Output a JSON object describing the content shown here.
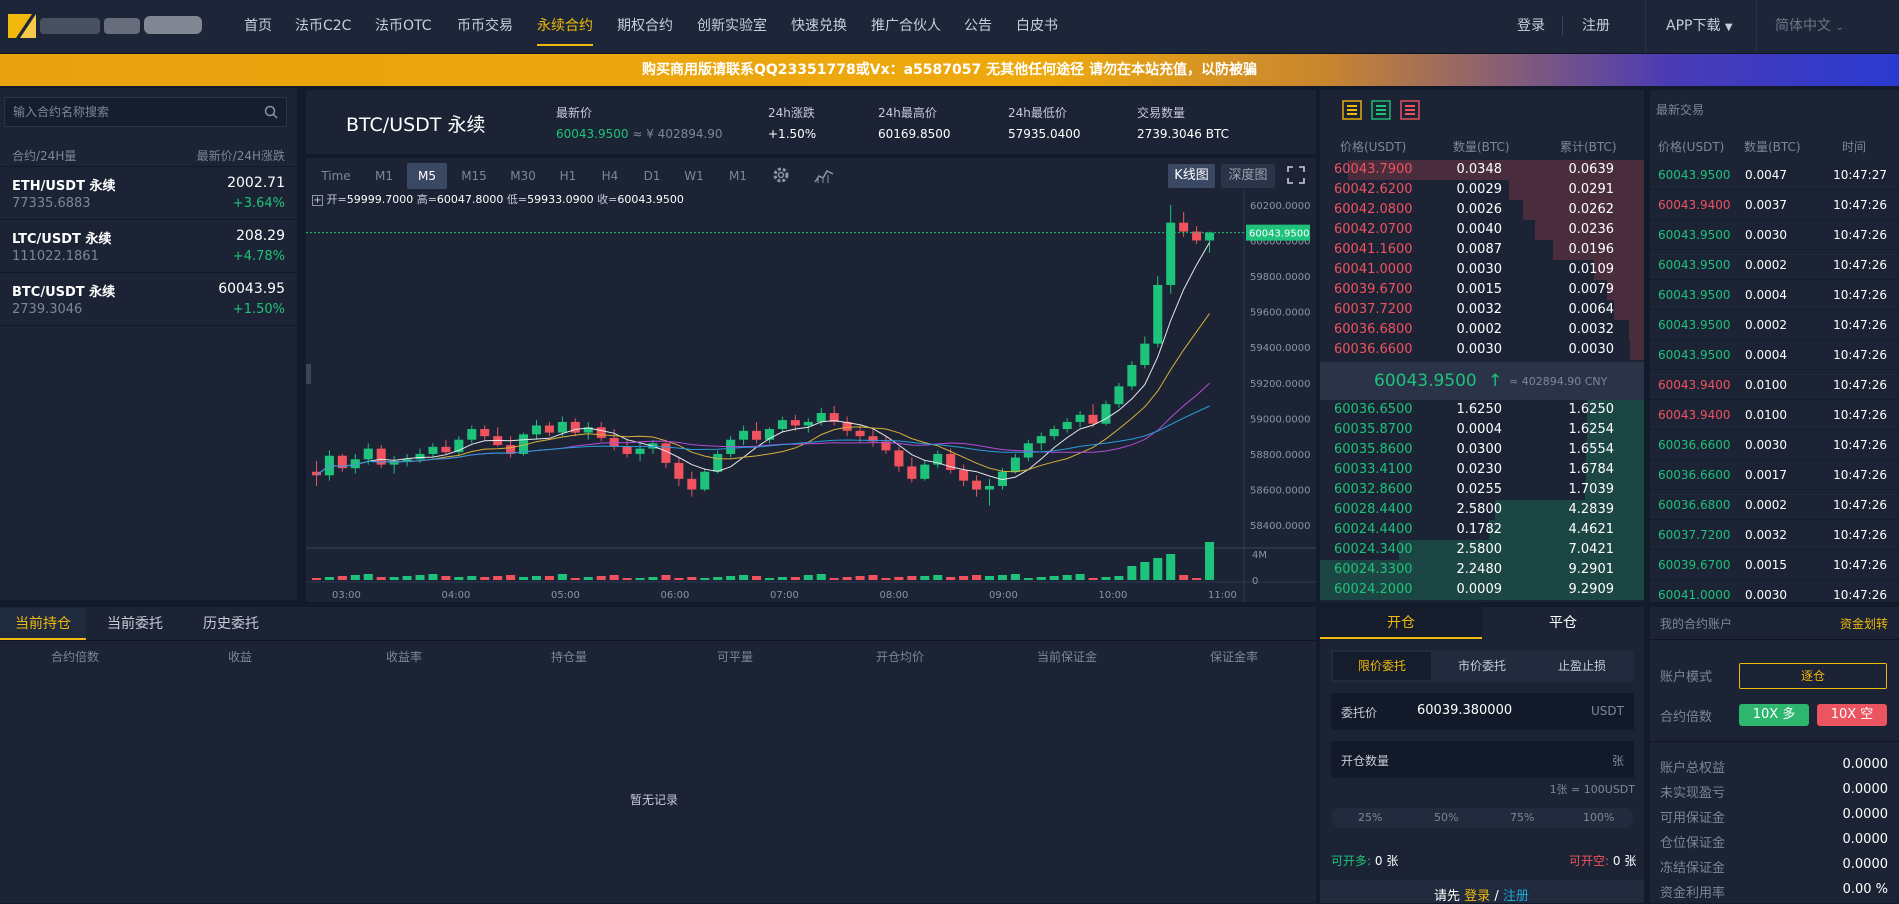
{
  "nav": {
    "items": [
      "首页",
      "法币C2C",
      "法币OTC",
      "币币交易",
      "永续合约",
      "期权合约",
      "创新实验室",
      "快速兑换",
      "推广合伙人",
      "公告",
      "白皮书"
    ],
    "login": "登录",
    "register": "注册",
    "app_download": "APP下载",
    "language": "简体中文"
  },
  "banner": {
    "text": "购买商用版请联系QQ23351778或Vx：a5587057 无其他任何途径 请勿在本站充值，以防被骗"
  },
  "market": {
    "search_placeholder": "输入合约名称搜索",
    "col_left": "合约/24H量",
    "col_right": "最新价/24H涨跌",
    "rows": [
      {
        "name": "ETH/USDT 永续",
        "vol": "77335.6883",
        "price": "2002.71",
        "change": "+3.64%"
      },
      {
        "name": "LTC/USDT 永续",
        "vol": "111022.1861",
        "price": "208.29",
        "change": "+4.78%"
      },
      {
        "name": "BTC/USDT 永续",
        "vol": "2739.3046",
        "price": "60043.95",
        "change": "+1.50%"
      }
    ]
  },
  "ticker": {
    "symbol": "BTC/USDT 永续",
    "last_label": "最新价",
    "last_value": "60043.9500",
    "last_cny": "≈ ¥ 402894.90",
    "change_label": "24h涨跌",
    "change_value": "+1.50%",
    "high_label": "24h最高价",
    "high_value": "60169.8500",
    "low_label": "24h最低价",
    "low_value": "57935.0400",
    "vol_label": "交易数量",
    "vol_value": "2739.3046 BTC"
  },
  "chart_toolbar": {
    "timeframes": [
      "Time",
      "M1",
      "M5",
      "M15",
      "M30",
      "H1",
      "H4",
      "D1",
      "W1",
      "M1"
    ],
    "active": "M5",
    "kline": "K线图",
    "depth": "深度图",
    "settings_icon": "gear-icon",
    "indicator_icon": "indicator-icon",
    "fullscreen_icon": "fullscreen-icon"
  },
  "ohlc": {
    "open_label": "开=",
    "open": "59999.7000",
    "high_label": "高=",
    "high": "60047.8000",
    "low_label": "低=",
    "low": "59933.0900",
    "close_label": "收=",
    "close": "60043.9500"
  },
  "chart_data": {
    "type": "candlestick",
    "price_ticks": [
      "60200.0000",
      "60000.0000",
      "59800.0000",
      "59600.0000",
      "59400.0000",
      "59200.0000",
      "59000.0000",
      "58800.0000",
      "58600.0000",
      "58400.0000"
    ],
    "volume_ticks": [
      "4M",
      "0"
    ],
    "time_ticks": [
      "03:00",
      "04:00",
      "05:00",
      "06:00",
      "07:00",
      "08:00",
      "09:00",
      "10:00",
      "11:00"
    ],
    "last_price_label": "60043.9500",
    "ylim": [
      58350,
      60250
    ],
    "candles": [
      [
        58700,
        58760,
        58620,
        58680
      ],
      [
        58680,
        58820,
        58650,
        58790
      ],
      [
        58790,
        58800,
        58700,
        58720
      ],
      [
        58720,
        58800,
        58690,
        58770
      ],
      [
        58770,
        58860,
        58740,
        58830
      ],
      [
        58830,
        58850,
        58720,
        58740
      ],
      [
        58740,
        58790,
        58690,
        58760
      ],
      [
        58760,
        58800,
        58730,
        58770
      ],
      [
        58770,
        58830,
        58750,
        58800
      ],
      [
        58800,
        58860,
        58780,
        58840
      ],
      [
        58840,
        58880,
        58800,
        58810
      ],
      [
        58810,
        58900,
        58790,
        58880
      ],
      [
        58880,
        58960,
        58860,
        58940
      ],
      [
        58940,
        58960,
        58880,
        58900
      ],
      [
        58900,
        58950,
        58840,
        58850
      ],
      [
        58850,
        58900,
        58780,
        58800
      ],
      [
        58800,
        58920,
        58790,
        58910
      ],
      [
        58910,
        58990,
        58880,
        58960
      ],
      [
        58960,
        58980,
        58900,
        58920
      ],
      [
        58920,
        59010,
        58900,
        58980
      ],
      [
        58980,
        59000,
        58900,
        58920
      ],
      [
        58920,
        58980,
        58880,
        58950
      ],
      [
        58950,
        58980,
        58870,
        58890
      ],
      [
        58890,
        58940,
        58820,
        58840
      ],
      [
        58840,
        58880,
        58780,
        58800
      ],
      [
        58800,
        58860,
        58760,
        58830
      ],
      [
        58830,
        58880,
        58800,
        58860
      ],
      [
        58860,
        58880,
        58720,
        58750
      ],
      [
        58750,
        58780,
        58620,
        58660
      ],
      [
        58660,
        58700,
        58560,
        58600
      ],
      [
        58600,
        58720,
        58590,
        58700
      ],
      [
        58700,
        58820,
        58690,
        58800
      ],
      [
        58800,
        58900,
        58780,
        58880
      ],
      [
        58880,
        58960,
        58850,
        58930
      ],
      [
        58930,
        58980,
        58860,
        58880
      ],
      [
        58880,
        58950,
        58860,
        58940
      ],
      [
        58940,
        59010,
        58920,
        58990
      ],
      [
        58990,
        59020,
        58930,
        58960
      ],
      [
        58960,
        59000,
        58920,
        58980
      ],
      [
        58980,
        59060,
        58960,
        59030
      ],
      [
        59030,
        59070,
        58960,
        58980
      ],
      [
        58980,
        59010,
        58900,
        58930
      ],
      [
        58930,
        58960,
        58860,
        58900
      ],
      [
        58900,
        58940,
        58840,
        58870
      ],
      [
        58870,
        58900,
        58800,
        58820
      ],
      [
        58820,
        58840,
        58700,
        58730
      ],
      [
        58730,
        58780,
        58640,
        58660
      ],
      [
        58660,
        58760,
        58650,
        58740
      ],
      [
        58740,
        58820,
        58720,
        58800
      ],
      [
        58800,
        58830,
        58690,
        58710
      ],
      [
        58710,
        58740,
        58620,
        58650
      ],
      [
        58650,
        58680,
        58560,
        58600
      ],
      [
        58600,
        58660,
        58510,
        58620
      ],
      [
        58620,
        58720,
        58600,
        58700
      ],
      [
        58700,
        58800,
        58690,
        58780
      ],
      [
        58780,
        58880,
        58760,
        58860
      ],
      [
        58860,
        58920,
        58820,
        58900
      ],
      [
        58900,
        58960,
        58880,
        58940
      ],
      [
        58940,
        59000,
        58920,
        58980
      ],
      [
        58980,
        59040,
        58950,
        59020
      ],
      [
        59020,
        59080,
        58950,
        58970
      ],
      [
        58970,
        59100,
        58960,
        59080
      ],
      [
        59080,
        59200,
        59060,
        59180
      ],
      [
        59180,
        59320,
        59160,
        59300
      ],
      [
        59300,
        59460,
        59280,
        59420
      ],
      [
        59420,
        59800,
        59400,
        59750
      ],
      [
        59750,
        60200,
        59700,
        60100
      ],
      [
        60100,
        60160,
        60020,
        60050
      ],
      [
        60050,
        60080,
        59980,
        60000
      ],
      [
        60000,
        60050,
        59930,
        60044
      ]
    ]
  },
  "orderbook": {
    "head_price": "价格(USDT)",
    "head_amount": "数量(BTC)",
    "head_total": "累计(BTC)",
    "asks": [
      [
        "60043.7900",
        "0.0348",
        "0.0639"
      ],
      [
        "60042.6200",
        "0.0029",
        "0.0291"
      ],
      [
        "60042.0800",
        "0.0026",
        "0.0262"
      ],
      [
        "60042.0700",
        "0.0040",
        "0.0236"
      ],
      [
        "60041.1600",
        "0.0087",
        "0.0196"
      ],
      [
        "60041.0000",
        "0.0030",
        "0.0109"
      ],
      [
        "60039.6700",
        "0.0015",
        "0.0079"
      ],
      [
        "60037.7200",
        "0.0032",
        "0.0064"
      ],
      [
        "60036.6800",
        "0.0002",
        "0.0032"
      ],
      [
        "60036.6600",
        "0.0030",
        "0.0030"
      ]
    ],
    "mid_price": "60043.9500",
    "mid_arrow": "↑",
    "mid_cny": "≈ 402894.90 CNY",
    "bids": [
      [
        "60036.6500",
        "1.6250",
        "1.6250"
      ],
      [
        "60035.8700",
        "0.0004",
        "1.6254"
      ],
      [
        "60035.8600",
        "0.0300",
        "1.6554"
      ],
      [
        "60033.4100",
        "0.0230",
        "1.6784"
      ],
      [
        "60032.8600",
        "0.0255",
        "1.7039"
      ],
      [
        "60028.4400",
        "2.5800",
        "4.2839"
      ],
      [
        "60024.4400",
        "0.1782",
        "4.4621"
      ],
      [
        "60024.3400",
        "2.5800",
        "7.0421"
      ],
      [
        "60024.3300",
        "2.2480",
        "9.2901"
      ],
      [
        "60024.2000",
        "0.0009",
        "9.2909"
      ]
    ]
  },
  "trades": {
    "title": "最新交易",
    "head_price": "价格(USDT)",
    "head_amount": "数量(BTC)",
    "head_time": "时间",
    "rows": [
      [
        "60043.9500",
        "0.0047",
        "10:47:27",
        "up"
      ],
      [
        "60043.9400",
        "0.0037",
        "10:47:26",
        "down"
      ],
      [
        "60043.9500",
        "0.0030",
        "10:47:26",
        "up"
      ],
      [
        "60043.9500",
        "0.0002",
        "10:47:26",
        "up"
      ],
      [
        "60043.9500",
        "0.0004",
        "10:47:26",
        "up"
      ],
      [
        "60043.9500",
        "0.0002",
        "10:47:26",
        "up"
      ],
      [
        "60043.9500",
        "0.0004",
        "10:47:26",
        "up"
      ],
      [
        "60043.9400",
        "0.0100",
        "10:47:26",
        "down"
      ],
      [
        "60043.9400",
        "0.0100",
        "10:47:26",
        "down"
      ],
      [
        "60036.6600",
        "0.0030",
        "10:47:26",
        "up"
      ],
      [
        "60036.6600",
        "0.0017",
        "10:47:26",
        "up"
      ],
      [
        "60036.6800",
        "0.0002",
        "10:47:26",
        "up"
      ],
      [
        "60037.7200",
        "0.0032",
        "10:47:26",
        "up"
      ],
      [
        "60039.6700",
        "0.0015",
        "10:47:26",
        "up"
      ],
      [
        "60041.0000",
        "0.0030",
        "10:47:26",
        "up"
      ]
    ]
  },
  "positions": {
    "tabs": [
      "当前持仓",
      "当前委托",
      "历史委托"
    ],
    "columns": [
      "合约倍数",
      "收益",
      "收益率",
      "持仓量",
      "可平量",
      "开仓均价",
      "当前保证金",
      "保证金率"
    ],
    "empty": "暂无记录"
  },
  "order_form": {
    "tab_open": "开仓",
    "tab_close": "平仓",
    "types": [
      "限价委托",
      "市价委托",
      "止盈止损"
    ],
    "price_label": "委托价",
    "price_value": "60039.380000",
    "price_unit": "USDT",
    "qty_label": "开仓数量",
    "qty_unit": "张",
    "contract_note": "1张 = 100USDT",
    "percents": [
      "25%",
      "50%",
      "75%",
      "100%"
    ],
    "can_long_label": "可开多:",
    "can_long": "0 张",
    "can_short_label": "可开空:",
    "can_short": "0 张",
    "login_prompt": "请先",
    "login_link": "登录",
    "sep": "/",
    "register_link": "注册"
  },
  "account": {
    "title": "我的合约账户",
    "transfer": "资金划转",
    "mode_label": "账户模式",
    "mode_value": "逐仓",
    "leverage_label": "合约倍数",
    "long_btn": "10X 多",
    "short_btn": "10X 空",
    "rows": [
      [
        "账户总权益",
        "0.0000"
      ],
      [
        "未实现盈亏",
        "0.0000"
      ],
      [
        "可用保证金",
        "0.0000"
      ],
      [
        "仓位保证金",
        "0.0000"
      ],
      [
        "冻结保证金",
        "0.0000"
      ],
      [
        "资金利用率",
        "0.00 %"
      ]
    ]
  },
  "colors": {
    "accent": "#f0b90b",
    "up": "#1ec27a",
    "down": "#f0525e",
    "bg": "#131b2b",
    "panel": "#1b2334"
  }
}
